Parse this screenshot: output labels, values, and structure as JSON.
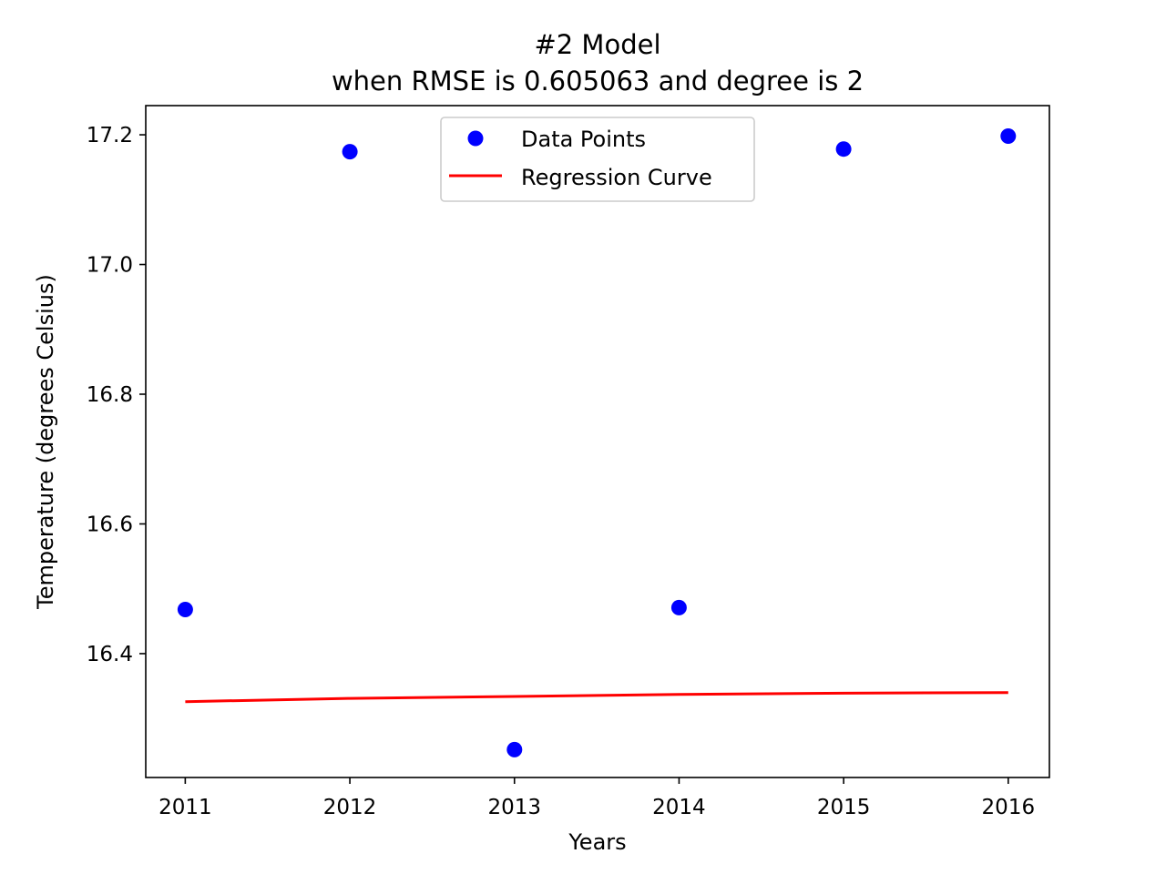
{
  "chart_data": {
    "type": "scatter",
    "title": "#2 Model",
    "subtitle": "when RMSE is 0.605063 and degree is 2",
    "xlabel": "Years",
    "ylabel": "Temperature (degrees Celsius)",
    "xlim": [
      2010.76,
      2016.25
    ],
    "ylim": [
      16.209,
      17.245
    ],
    "xticks": [
      2011,
      2012,
      2013,
      2014,
      2015,
      2016
    ],
    "xtick_labels": [
      "2011",
      "2012",
      "2013",
      "2014",
      "2015",
      "2016"
    ],
    "yticks": [
      16.4,
      16.6,
      16.8,
      17.0,
      17.2
    ],
    "ytick_labels": [
      "16.4",
      "16.6",
      "16.8",
      "17.0",
      "17.2"
    ],
    "grid": false,
    "legend": {
      "position": "top-center",
      "entries": [
        "Data Points",
        "Regression Curve"
      ]
    },
    "series": [
      {
        "name": "Data Points",
        "kind": "scatter",
        "color": "#0000ff",
        "x": [
          2011,
          2012,
          2013,
          2014,
          2015,
          2016
        ],
        "y": [
          16.468,
          17.174,
          16.252,
          16.471,
          17.178,
          17.198
        ]
      },
      {
        "name": "Regression Curve",
        "kind": "line",
        "color": "#ff0000",
        "x": [
          2011,
          2012,
          2013,
          2014,
          2015,
          2016
        ],
        "y": [
          16.326,
          16.331,
          16.334,
          16.337,
          16.339,
          16.34
        ]
      }
    ]
  }
}
